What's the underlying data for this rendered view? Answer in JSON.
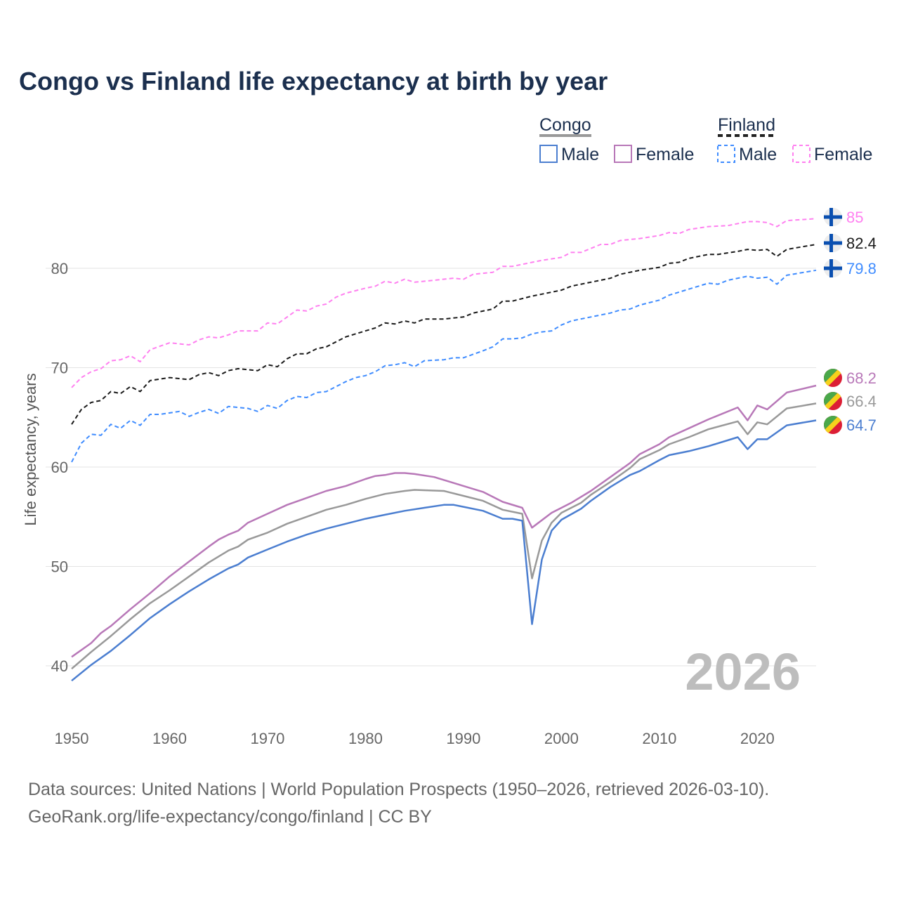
{
  "title": "Congo vs Finland life expectancy at birth by year",
  "legend": {
    "groups": [
      {
        "label": "Congo",
        "items": [
          "Male",
          "Female"
        ]
      },
      {
        "label": "Finland",
        "items": [
          "Male",
          "Female"
        ]
      }
    ]
  },
  "watermark_year": "2026",
  "footer": {
    "line1": "Data sources: United Nations | World Population Prospects (1950–2026, retrieved 2026-03-10).",
    "line2": "GeoRank.org/life-expectancy/congo/finland | CC BY"
  },
  "chart_data": {
    "type": "line",
    "title": "Congo vs Finland life expectancy at birth by year",
    "xlabel": "",
    "ylabel": "Life expectancy, years",
    "xlim": [
      1950,
      2026
    ],
    "ylim": [
      37,
      87
    ],
    "xticks": [
      1950,
      1960,
      1970,
      1980,
      1990,
      2000,
      2010,
      2020
    ],
    "yticks": [
      40,
      50,
      60,
      70,
      80
    ],
    "grid": true,
    "legend_position": "top-right",
    "series": [
      {
        "name": "Finland Female",
        "country": "Finland",
        "color": "#ff80f0",
        "dash": true,
        "end_label": "85",
        "x": [
          1950,
          1951,
          1952,
          1953,
          1954,
          1955,
          1956,
          1957,
          1958,
          1960,
          1962,
          1963,
          1964,
          1965,
          1966,
          1967,
          1969,
          1970,
          1971,
          1973,
          1974,
          1975,
          1976,
          1977,
          1978,
          1980,
          1981,
          1982,
          1983,
          1984,
          1985,
          1987,
          1989,
          1990,
          1991,
          1993,
          1994,
          1995,
          1997,
          1998,
          2000,
          2001,
          2002,
          2004,
          2005,
          2006,
          2008,
          2010,
          2011,
          2012,
          2013,
          2015,
          2017,
          2019,
          2020,
          2021,
          2022,
          2023,
          2026
        ],
        "y": [
          68.0,
          69.0,
          69.6,
          69.9,
          70.7,
          70.8,
          71.2,
          70.6,
          71.8,
          72.5,
          72.3,
          72.8,
          73.1,
          73.0,
          73.3,
          73.7,
          73.7,
          74.5,
          74.4,
          75.8,
          75.7,
          76.2,
          76.4,
          77.1,
          77.5,
          78.0,
          78.2,
          78.7,
          78.5,
          78.9,
          78.6,
          78.8,
          79.0,
          78.9,
          79.4,
          79.6,
          80.2,
          80.2,
          80.6,
          80.8,
          81.1,
          81.6,
          81.6,
          82.4,
          82.4,
          82.8,
          83.0,
          83.3,
          83.6,
          83.5,
          83.9,
          84.2,
          84.3,
          84.7,
          84.7,
          84.6,
          84.2,
          84.8,
          85.0
        ]
      },
      {
        "name": "Finland Total",
        "country": "Finland",
        "color": "#1a1a1a",
        "dash": true,
        "end_label": "82.4",
        "x": [
          1950,
          1951,
          1952,
          1953,
          1954,
          1955,
          1956,
          1957,
          1958,
          1960,
          1962,
          1963,
          1964,
          1965,
          1966,
          1967,
          1969,
          1970,
          1971,
          1972,
          1973,
          1974,
          1975,
          1976,
          1978,
          1980,
          1981,
          1982,
          1983,
          1984,
          1985,
          1986,
          1988,
          1990,
          1991,
          1993,
          1994,
          1995,
          1997,
          1998,
          2000,
          2001,
          2002,
          2004,
          2005,
          2006,
          2008,
          2010,
          2011,
          2012,
          2013,
          2015,
          2016,
          2018,
          2019,
          2020,
          2021,
          2022,
          2023,
          2026
        ],
        "y": [
          64.3,
          65.8,
          66.5,
          66.7,
          67.6,
          67.4,
          68.1,
          67.6,
          68.7,
          69.0,
          68.8,
          69.3,
          69.5,
          69.2,
          69.7,
          69.9,
          69.7,
          70.3,
          70.1,
          70.9,
          71.4,
          71.4,
          71.9,
          72.1,
          73.1,
          73.7,
          74.0,
          74.5,
          74.4,
          74.7,
          74.5,
          74.9,
          74.9,
          75.1,
          75.5,
          75.9,
          76.7,
          76.7,
          77.2,
          77.4,
          77.8,
          78.2,
          78.4,
          78.8,
          79.0,
          79.4,
          79.8,
          80.1,
          80.5,
          80.6,
          81.0,
          81.4,
          81.4,
          81.7,
          81.9,
          81.8,
          81.9,
          81.2,
          81.9,
          82.4
        ]
      },
      {
        "name": "Finland Male",
        "country": "Finland",
        "color": "#3f8cff",
        "dash": true,
        "end_label": "79.8",
        "x": [
          1950,
          1951,
          1952,
          1953,
          1954,
          1955,
          1956,
          1957,
          1958,
          1959,
          1961,
          1962,
          1963,
          1964,
          1965,
          1966,
          1968,
          1969,
          1970,
          1971,
          1972,
          1973,
          1974,
          1975,
          1976,
          1978,
          1979,
          1980,
          1981,
          1982,
          1983,
          1984,
          1985,
          1986,
          1988,
          1989,
          1990,
          1992,
          1993,
          1994,
          1995,
          1996,
          1997,
          1998,
          1999,
          2000,
          2001,
          2003,
          2005,
          2006,
          2007,
          2008,
          2010,
          2011,
          2013,
          2015,
          2016,
          2017,
          2019,
          2020,
          2021,
          2022,
          2023,
          2026
        ],
        "y": [
          60.5,
          62.4,
          63.3,
          63.2,
          64.3,
          63.9,
          64.7,
          64.2,
          65.3,
          65.3,
          65.6,
          65.1,
          65.5,
          65.8,
          65.4,
          66.1,
          65.9,
          65.6,
          66.2,
          65.9,
          66.7,
          67.1,
          67.0,
          67.5,
          67.6,
          68.6,
          69.0,
          69.2,
          69.6,
          70.2,
          70.3,
          70.5,
          70.1,
          70.7,
          70.8,
          71.0,
          71.0,
          71.7,
          72.1,
          72.9,
          72.9,
          73.0,
          73.4,
          73.6,
          73.7,
          74.3,
          74.7,
          75.1,
          75.5,
          75.8,
          75.9,
          76.3,
          76.8,
          77.3,
          77.9,
          78.5,
          78.4,
          78.8,
          79.2,
          79.0,
          79.1,
          78.4,
          79.3,
          79.8
        ]
      },
      {
        "name": "Congo Female",
        "country": "Congo",
        "color": "#b878b8",
        "dash": false,
        "end_label": "68.2",
        "x": [
          1950,
          1952,
          1953,
          1954,
          1956,
          1958,
          1960,
          1962,
          1964,
          1965,
          1966,
          1967,
          1968,
          1970,
          1972,
          1974,
          1976,
          1978,
          1980,
          1981,
          1982,
          1983,
          1984,
          1985,
          1987,
          1988,
          1990,
          1992,
          1994,
          1996,
          1997,
          1999,
          2000,
          2001,
          2003,
          2005,
          2007,
          2008,
          2010,
          2011,
          2013,
          2015,
          2018,
          2019,
          2020,
          2021,
          2023,
          2026
        ],
        "y": [
          40.9,
          42.3,
          43.3,
          44.0,
          45.7,
          47.3,
          49.0,
          50.5,
          52.0,
          52.7,
          53.2,
          53.6,
          54.4,
          55.3,
          56.2,
          56.9,
          57.6,
          58.1,
          58.8,
          59.1,
          59.2,
          59.4,
          59.4,
          59.3,
          59.0,
          58.7,
          58.1,
          57.5,
          56.5,
          55.9,
          53.9,
          55.4,
          55.9,
          56.4,
          57.6,
          59.0,
          60.4,
          61.3,
          62.3,
          63.0,
          63.9,
          64.8,
          66.0,
          64.7,
          66.2,
          65.8,
          67.5,
          68.2
        ]
      },
      {
        "name": "Congo Total",
        "country": "Congo",
        "color": "#999999",
        "dash": false,
        "end_label": "66.4",
        "x": [
          1950,
          1952,
          1954,
          1956,
          1958,
          1960,
          1962,
          1964,
          1966,
          1967,
          1968,
          1970,
          1972,
          1974,
          1976,
          1978,
          1980,
          1982,
          1984,
          1985,
          1988,
          1990,
          1992,
          1994,
          1996,
          1997,
          1998,
          1999,
          2000,
          2002,
          2003,
          2005,
          2007,
          2008,
          2010,
          2011,
          2013,
          2015,
          2018,
          2019,
          2020,
          2021,
          2023,
          2026
        ],
        "y": [
          39.7,
          41.4,
          43.0,
          44.7,
          46.3,
          47.6,
          49.0,
          50.4,
          51.6,
          52.0,
          52.7,
          53.4,
          54.3,
          55.0,
          55.7,
          56.2,
          56.8,
          57.3,
          57.6,
          57.7,
          57.6,
          57.1,
          56.6,
          55.7,
          55.3,
          48.8,
          52.6,
          54.4,
          55.4,
          56.4,
          57.2,
          58.5,
          59.9,
          60.8,
          61.7,
          62.3,
          63.0,
          63.8,
          64.6,
          63.3,
          64.5,
          64.3,
          65.9,
          66.4
        ]
      },
      {
        "name": "Congo Male",
        "country": "Congo",
        "color": "#4b7ed0",
        "dash": false,
        "end_label": "64.7",
        "x": [
          1950,
          1952,
          1954,
          1956,
          1958,
          1960,
          1962,
          1964,
          1966,
          1967,
          1968,
          1970,
          1972,
          1974,
          1976,
          1978,
          1980,
          1982,
          1984,
          1986,
          1988,
          1989,
          1990,
          1992,
          1994,
          1995,
          1996,
          1997,
          1998,
          1999,
          2000,
          2002,
          2003,
          2005,
          2007,
          2008,
          2010,
          2011,
          2013,
          2015,
          2018,
          2019,
          2020,
          2021,
          2023,
          2026
        ],
        "y": [
          38.5,
          40.1,
          41.5,
          43.1,
          44.8,
          46.2,
          47.5,
          48.7,
          49.8,
          50.2,
          50.9,
          51.7,
          52.5,
          53.2,
          53.8,
          54.3,
          54.8,
          55.2,
          55.6,
          55.9,
          56.2,
          56.2,
          56.0,
          55.6,
          54.8,
          54.8,
          54.6,
          44.2,
          50.7,
          53.6,
          54.7,
          55.8,
          56.6,
          58.0,
          59.2,
          59.6,
          60.7,
          61.2,
          61.6,
          62.1,
          63.0,
          61.8,
          62.8,
          62.8,
          64.2,
          64.7
        ]
      }
    ]
  }
}
